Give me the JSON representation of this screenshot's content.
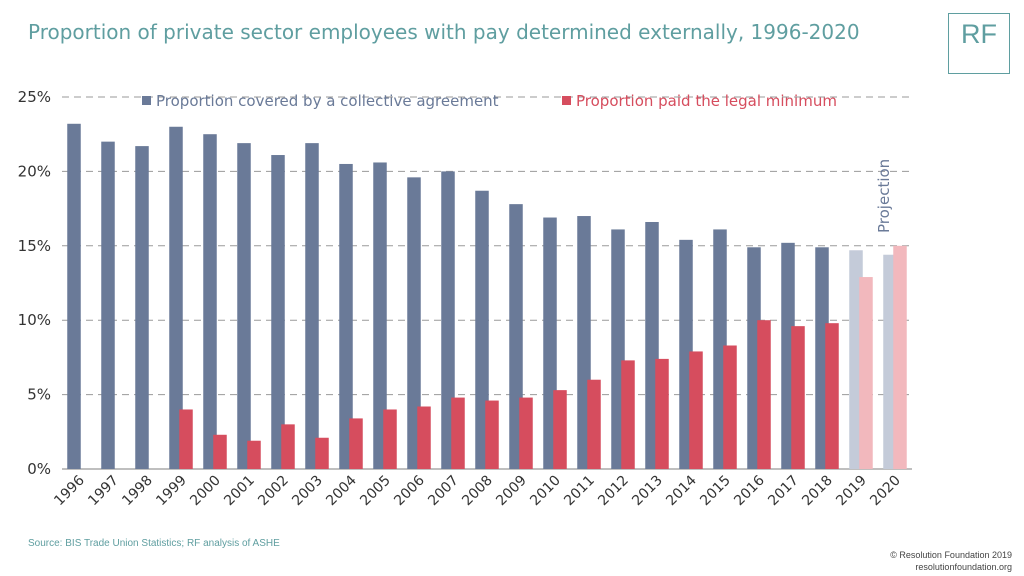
{
  "header": {
    "title": "Proportion of private sector employees with pay determined externally, 1996-2020",
    "logo_text": "RF"
  },
  "chart_data": {
    "type": "bar",
    "title": "Proportion of private sector employees with pay determined externally, 1996-2020",
    "xlabel": "",
    "ylabel": "",
    "ylim": [
      0,
      25
    ],
    "yticks": [
      "0%",
      "5%",
      "10%",
      "15%",
      "20%",
      "25%"
    ],
    "grid": true,
    "legend": "top",
    "categories": [
      "1996",
      "1997",
      "1998",
      "1999",
      "2000",
      "2001",
      "2002",
      "2003",
      "2004",
      "2005",
      "2006",
      "2007",
      "2008",
      "2009",
      "2010",
      "2011",
      "2012",
      "2013",
      "2014",
      "2015",
      "2016",
      "2017",
      "2018",
      "2019",
      "2020"
    ],
    "projection_categories": [
      "2019",
      "2020"
    ],
    "annotation": "Projection",
    "series": [
      {
        "name": "Proportion covered by a collective agreement",
        "color": "#6a7a98",
        "projection_color": "#c4cbd9",
        "values": [
          23.2,
          22.0,
          21.7,
          23.0,
          22.5,
          21.9,
          21.1,
          21.9,
          20.5,
          20.6,
          19.6,
          20.0,
          18.7,
          17.8,
          16.9,
          17.0,
          16.1,
          16.6,
          15.4,
          16.1,
          14.9,
          15.2,
          14.9,
          14.7,
          14.4
        ]
      },
      {
        "name": "Proportion paid the legal minimum",
        "color": "#d64d5e",
        "projection_color": "#f2b8bd",
        "values": [
          null,
          null,
          null,
          4.0,
          2.3,
          1.9,
          3.0,
          2.1,
          3.4,
          4.0,
          4.2,
          4.8,
          4.6,
          4.8,
          5.3,
          6.0,
          7.3,
          7.4,
          7.9,
          8.3,
          10.0,
          9.6,
          9.8,
          12.9,
          15.0
        ]
      }
    ]
  },
  "footer": {
    "source": "Source: BIS Trade Union Statistics; RF analysis of ASHE",
    "copyright_line1": "© Resolution Foundation 2019",
    "copyright_line2": "resolutionfoundation.org"
  }
}
